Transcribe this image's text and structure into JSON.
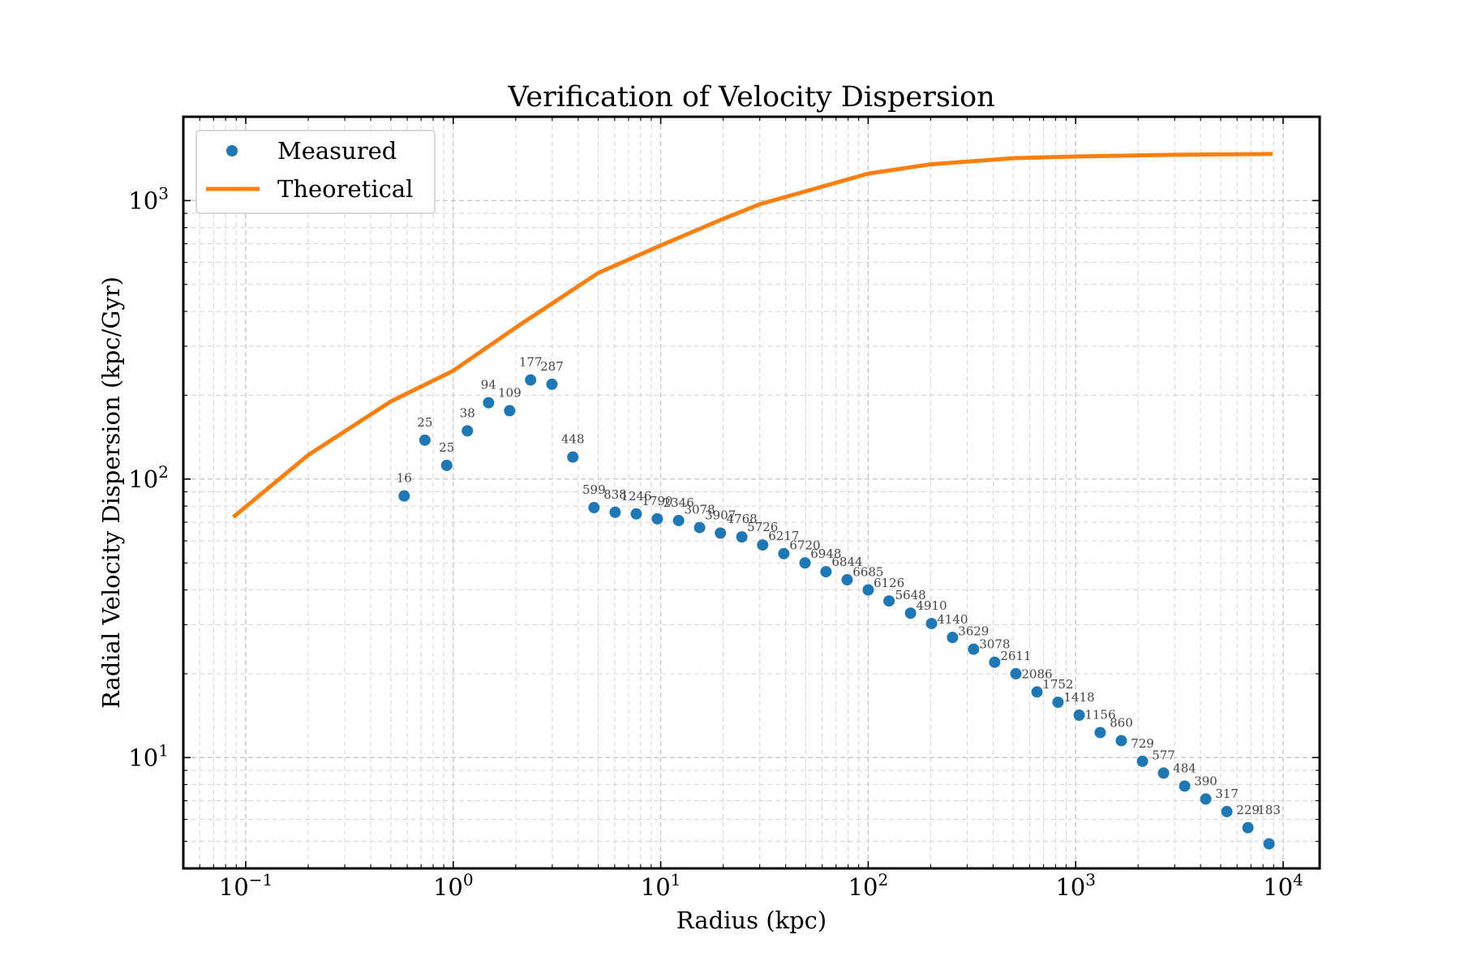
{
  "chart_data": {
    "type": "scatter",
    "title": "Verification of Velocity Dispersion",
    "xlabel": "Radius (kpc)",
    "ylabel": "Radial Velocity Dispersion (kpc/Gyr)",
    "xscale": "log",
    "yscale": "log",
    "xlim": [
      0.05,
      15000
    ],
    "ylim": [
      4,
      2000
    ],
    "x_tick_labels": [
      {
        "value": 0.1,
        "base": "10",
        "exp": "−1"
      },
      {
        "value": 1,
        "base": "10",
        "exp": "0"
      },
      {
        "value": 10,
        "base": "10",
        "exp": "1"
      },
      {
        "value": 100,
        "base": "10",
        "exp": "2"
      },
      {
        "value": 1000,
        "base": "10",
        "exp": "3"
      },
      {
        "value": 10000,
        "base": "10",
        "exp": "4"
      }
    ],
    "y_tick_labels": [
      {
        "value": 10,
        "base": "10",
        "exp": "1"
      },
      {
        "value": 100,
        "base": "10",
        "exp": "2"
      },
      {
        "value": 1000,
        "base": "10",
        "exp": "3"
      }
    ],
    "grid": true,
    "legend": {
      "position": "top-left",
      "entries": [
        {
          "label": "Measured",
          "type": "marker",
          "color": "#1f77b4"
        },
        {
          "label": "Theoretical",
          "type": "line",
          "color": "#ff7f0e"
        }
      ]
    },
    "series": [
      {
        "name": "Measured",
        "type": "scatter",
        "color": "#1f77b4",
        "points": [
          {
            "x": 0.58,
            "y": 87,
            "label": "16"
          },
          {
            "x": 0.73,
            "y": 138,
            "label": "25"
          },
          {
            "x": 0.93,
            "y": 112,
            "label": "25"
          },
          {
            "x": 1.17,
            "y": 149,
            "label": "38"
          },
          {
            "x": 1.48,
            "y": 188,
            "label": "94"
          },
          {
            "x": 1.87,
            "y": 176,
            "label": "109"
          },
          {
            "x": 2.36,
            "y": 227,
            "label": "177"
          },
          {
            "x": 2.99,
            "y": 219,
            "label": "287"
          },
          {
            "x": 3.77,
            "y": 120,
            "label": "448"
          },
          {
            "x": 4.77,
            "y": 79,
            "label": "599"
          },
          {
            "x": 6.03,
            "y": 76,
            "label": "838"
          },
          {
            "x": 7.62,
            "y": 75,
            "label": "1246"
          },
          {
            "x": 9.63,
            "y": 72,
            "label": "1790"
          },
          {
            "x": 12.2,
            "y": 71,
            "label": "2346"
          },
          {
            "x": 15.4,
            "y": 67,
            "label": "3078"
          },
          {
            "x": 19.4,
            "y": 64,
            "label": "3907"
          },
          {
            "x": 24.6,
            "y": 62,
            "label": "4768"
          },
          {
            "x": 31.0,
            "y": 58,
            "label": "5726"
          },
          {
            "x": 39.2,
            "y": 54,
            "label": "6217"
          },
          {
            "x": 49.6,
            "y": 50,
            "label": "6720"
          },
          {
            "x": 62.6,
            "y": 46.5,
            "label": "6948"
          },
          {
            "x": 79.2,
            "y": 43.5,
            "label": "6844"
          },
          {
            "x": 100,
            "y": 40,
            "label": "6685"
          },
          {
            "x": 126,
            "y": 36.5,
            "label": "6126"
          },
          {
            "x": 160,
            "y": 33,
            "label": "5648"
          },
          {
            "x": 202,
            "y": 30.3,
            "label": "4910"
          },
          {
            "x": 255,
            "y": 27,
            "label": "4140"
          },
          {
            "x": 322,
            "y": 24.5,
            "label": "3629"
          },
          {
            "x": 407,
            "y": 22,
            "label": "3078"
          },
          {
            "x": 515,
            "y": 20,
            "label": "2611"
          },
          {
            "x": 651,
            "y": 17.2,
            "label": "2086"
          },
          {
            "x": 822,
            "y": 15.8,
            "label": "1752"
          },
          {
            "x": 1040,
            "y": 14.2,
            "label": "1418"
          },
          {
            "x": 1313,
            "y": 12.3,
            "label": "1156"
          },
          {
            "x": 1660,
            "y": 11.5,
            "label": "860"
          },
          {
            "x": 2099,
            "y": 9.7,
            "label": "729"
          },
          {
            "x": 2652,
            "y": 8.8,
            "label": "577"
          },
          {
            "x": 3352,
            "y": 7.9,
            "label": "484"
          },
          {
            "x": 4236,
            "y": 7.1,
            "label": "390"
          },
          {
            "x": 5354,
            "y": 6.4,
            "label": "317"
          },
          {
            "x": 6766,
            "y": 5.6,
            "label": "229"
          },
          {
            "x": 8550,
            "y": 4.9,
            "label": ""
          }
        ],
        "extra_annotations": [
          {
            "x": 8550,
            "y": 5.6,
            "label": "183"
          }
        ]
      },
      {
        "name": "Theoretical",
        "type": "line",
        "color": "#ff7f0e",
        "points": [
          {
            "x": 0.087,
            "y": 73
          },
          {
            "x": 0.2,
            "y": 122
          },
          {
            "x": 0.5,
            "y": 190
          },
          {
            "x": 1,
            "y": 245
          },
          {
            "x": 2,
            "y": 350
          },
          {
            "x": 5,
            "y": 550
          },
          {
            "x": 10,
            "y": 690
          },
          {
            "x": 20,
            "y": 860
          },
          {
            "x": 30,
            "y": 970
          },
          {
            "x": 50,
            "y": 1080
          },
          {
            "x": 100,
            "y": 1250
          },
          {
            "x": 200,
            "y": 1350
          },
          {
            "x": 500,
            "y": 1420
          },
          {
            "x": 1000,
            "y": 1440
          },
          {
            "x": 3000,
            "y": 1460
          },
          {
            "x": 8900,
            "y": 1470
          }
        ]
      }
    ]
  }
}
